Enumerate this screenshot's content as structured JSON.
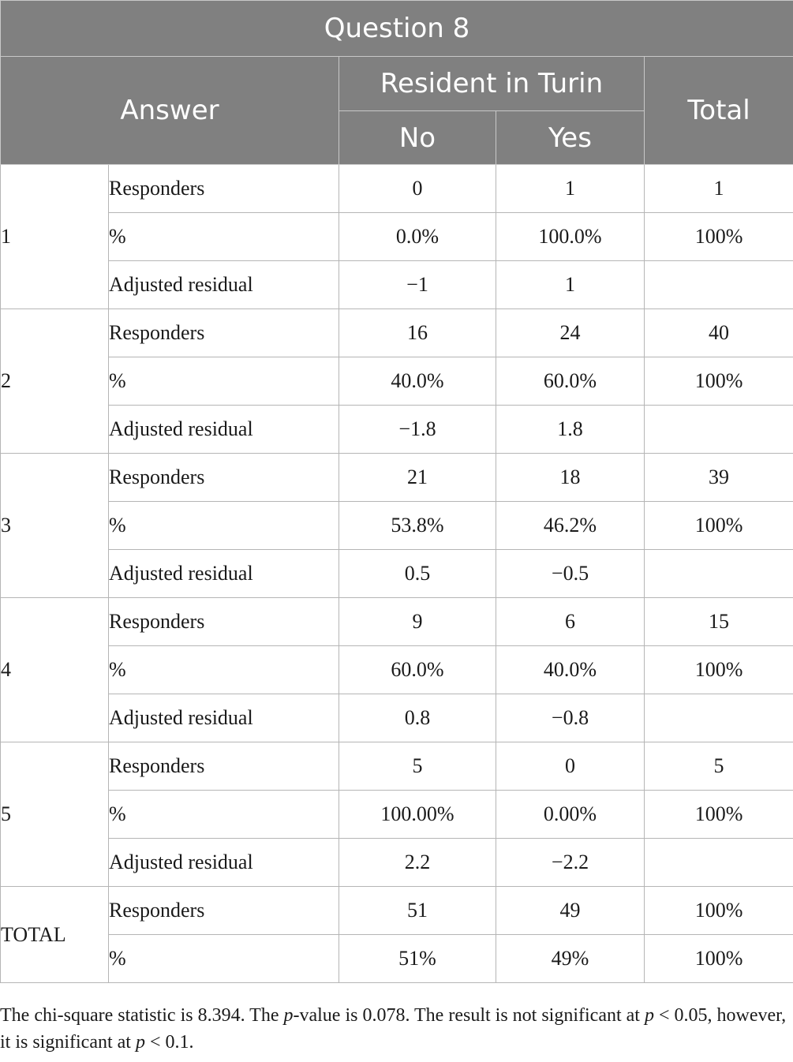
{
  "table": {
    "title": "Question 8",
    "answer_header": "Answer",
    "group_header": "Resident in Turin",
    "total_header": "Total",
    "col_no": "No",
    "col_yes": "Yes",
    "groups": [
      {
        "label": "1",
        "rows": [
          {
            "metric": "Responders",
            "no": "0",
            "yes": "1",
            "total": "1"
          },
          {
            "metric": "%",
            "no": "0.0%",
            "yes": "100.0%",
            "total": "100%"
          },
          {
            "metric": "Adjusted residual",
            "no": "−1",
            "yes": "1",
            "total": ""
          }
        ]
      },
      {
        "label": "2",
        "rows": [
          {
            "metric": "Responders",
            "no": "16",
            "yes": "24",
            "total": "40"
          },
          {
            "metric": "%",
            "no": "40.0%",
            "yes": "60.0%",
            "total": "100%"
          },
          {
            "metric": "Adjusted residual",
            "no": "−1.8",
            "yes": "1.8",
            "total": ""
          }
        ]
      },
      {
        "label": "3",
        "rows": [
          {
            "metric": "Responders",
            "no": "21",
            "yes": "18",
            "total": "39"
          },
          {
            "metric": "%",
            "no": "53.8%",
            "yes": "46.2%",
            "total": "100%"
          },
          {
            "metric": "Adjusted residual",
            "no": "0.5",
            "yes": "−0.5",
            "total": ""
          }
        ]
      },
      {
        "label": "4",
        "rows": [
          {
            "metric": "Responders",
            "no": "9",
            "yes": "6",
            "total": "15"
          },
          {
            "metric": "%",
            "no": "60.0%",
            "yes": "40.0%",
            "total": "100%"
          },
          {
            "metric": "Adjusted residual",
            "no": "0.8",
            "yes": "−0.8",
            "total": ""
          }
        ]
      },
      {
        "label": "5",
        "rows": [
          {
            "metric": "Responders",
            "no": "5",
            "yes": "0",
            "total": "5"
          },
          {
            "metric": "%",
            "no": "100.00%",
            "yes": "0.00%",
            "total": "100%"
          },
          {
            "metric": "Adjusted residual",
            "no": "2.2",
            "yes": "−2.2",
            "total": ""
          }
        ]
      },
      {
        "label": "TOTAL",
        "rows": [
          {
            "metric": "Responders",
            "no": "51",
            "yes": "49",
            "total": "100%"
          },
          {
            "metric": "%",
            "no": "51%",
            "yes": "49%",
            "total": "100%"
          }
        ]
      }
    ]
  },
  "footnote": {
    "s1": "The chi-square statistic is 8.394. The ",
    "p1": "p",
    "s2": "-value is 0.078. The result is not significant at ",
    "p2": "p",
    "s3": " < 0.05, however, it is significant at ",
    "p3": "p",
    "s4": " < 0.1."
  }
}
